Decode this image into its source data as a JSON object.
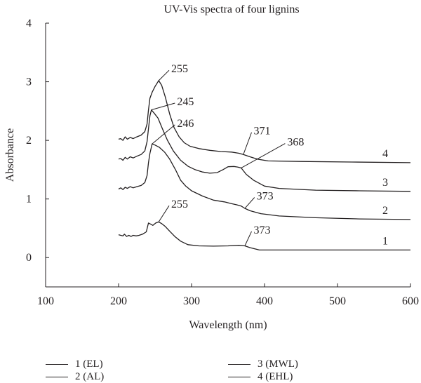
{
  "chart_data": {
    "type": "line",
    "title": "UV-Vis spectra of four lignins",
    "xlabel": "Wavelength (nm)",
    "ylabel": "Absorbance",
    "xlim": [
      100,
      600
    ],
    "ylim": [
      -0.5,
      4
    ],
    "xticks": [
      100,
      200,
      300,
      400,
      500,
      600
    ],
    "yticks": [
      0,
      1,
      2,
      3,
      4
    ],
    "grid": false,
    "legend_position": "bottom",
    "series": [
      {
        "name": "1 (EL)",
        "end_label": "1",
        "points": [
          [
            200,
            0.39
          ],
          [
            203,
            0.38
          ],
          [
            206,
            0.37
          ],
          [
            208,
            0.4
          ],
          [
            211,
            0.36
          ],
          [
            214,
            0.38
          ],
          [
            217,
            0.36
          ],
          [
            220,
            0.38
          ],
          [
            224,
            0.37
          ],
          [
            228,
            0.38
          ],
          [
            233,
            0.4
          ],
          [
            238,
            0.44
          ],
          [
            241,
            0.59
          ],
          [
            244,
            0.57
          ],
          [
            247,
            0.55
          ],
          [
            251,
            0.59
          ],
          [
            255,
            0.61
          ],
          [
            259,
            0.58
          ],
          [
            264,
            0.53
          ],
          [
            270,
            0.45
          ],
          [
            277,
            0.36
          ],
          [
            285,
            0.28
          ],
          [
            295,
            0.22
          ],
          [
            310,
            0.2
          ],
          [
            330,
            0.195
          ],
          [
            350,
            0.2
          ],
          [
            365,
            0.21
          ],
          [
            373,
            0.2
          ],
          [
            380,
            0.17
          ],
          [
            393,
            0.13
          ],
          [
            420,
            0.13
          ],
          [
            500,
            0.13
          ],
          [
            600,
            0.13
          ]
        ]
      },
      {
        "name": "2 (AL)",
        "end_label": "2",
        "points": [
          [
            200,
            1.17
          ],
          [
            203,
            1.19
          ],
          [
            206,
            1.16
          ],
          [
            209,
            1.2
          ],
          [
            212,
            1.18
          ],
          [
            216,
            1.21
          ],
          [
            220,
            1.19
          ],
          [
            225,
            1.21
          ],
          [
            231,
            1.23
          ],
          [
            236,
            1.28
          ],
          [
            239,
            1.4
          ],
          [
            241,
            1.62
          ],
          [
            243,
            1.78
          ],
          [
            246,
            1.94
          ],
          [
            250,
            1.92
          ],
          [
            256,
            1.88
          ],
          [
            263,
            1.8
          ],
          [
            270,
            1.68
          ],
          [
            278,
            1.5
          ],
          [
            285,
            1.32
          ],
          [
            292,
            1.22
          ],
          [
            300,
            1.14
          ],
          [
            315,
            1.05
          ],
          [
            330,
            0.98
          ],
          [
            345,
            0.95
          ],
          [
            355,
            0.92
          ],
          [
            362,
            0.9
          ],
          [
            368,
            0.88
          ],
          [
            373,
            0.84
          ],
          [
            380,
            0.8
          ],
          [
            395,
            0.75
          ],
          [
            420,
            0.71
          ],
          [
            470,
            0.68
          ],
          [
            530,
            0.66
          ],
          [
            600,
            0.65
          ]
        ]
      },
      {
        "name": "3 (MWL)",
        "end_label": "3",
        "points": [
          [
            200,
            1.68
          ],
          [
            203,
            1.69
          ],
          [
            206,
            1.66
          ],
          [
            209,
            1.71
          ],
          [
            212,
            1.68
          ],
          [
            216,
            1.72
          ],
          [
            220,
            1.7
          ],
          [
            225,
            1.73
          ],
          [
            231,
            1.76
          ],
          [
            236,
            1.82
          ],
          [
            239,
            1.98
          ],
          [
            241,
            2.2
          ],
          [
            243,
            2.42
          ],
          [
            245,
            2.52
          ],
          [
            249,
            2.46
          ],
          [
            254,
            2.38
          ],
          [
            260,
            2.2
          ],
          [
            267,
            2.0
          ],
          [
            275,
            1.82
          ],
          [
            285,
            1.66
          ],
          [
            295,
            1.56
          ],
          [
            305,
            1.5
          ],
          [
            315,
            1.46
          ],
          [
            325,
            1.44
          ],
          [
            335,
            1.45
          ],
          [
            343,
            1.5
          ],
          [
            350,
            1.55
          ],
          [
            358,
            1.555
          ],
          [
            363,
            1.545
          ],
          [
            368,
            1.53
          ],
          [
            375,
            1.42
          ],
          [
            385,
            1.32
          ],
          [
            400,
            1.22
          ],
          [
            420,
            1.18
          ],
          [
            470,
            1.15
          ],
          [
            530,
            1.14
          ],
          [
            600,
            1.13
          ]
        ]
      },
      {
        "name": "4 (EHL)",
        "end_label": "4",
        "points": [
          [
            200,
            2.02
          ],
          [
            203,
            2.03
          ],
          [
            206,
            2.0
          ],
          [
            209,
            2.06
          ],
          [
            212,
            2.02
          ],
          [
            216,
            2.05
          ],
          [
            220,
            2.03
          ],
          [
            225,
            2.06
          ],
          [
            231,
            2.09
          ],
          [
            236,
            2.15
          ],
          [
            239,
            2.28
          ],
          [
            241,
            2.52
          ],
          [
            243,
            2.72
          ],
          [
            246,
            2.82
          ],
          [
            250,
            2.92
          ],
          [
            255,
            3.02
          ],
          [
            259,
            2.94
          ],
          [
            264,
            2.74
          ],
          [
            270,
            2.45
          ],
          [
            276,
            2.22
          ],
          [
            283,
            2.06
          ],
          [
            290,
            1.96
          ],
          [
            298,
            1.9
          ],
          [
            310,
            1.86
          ],
          [
            325,
            1.83
          ],
          [
            340,
            1.81
          ],
          [
            355,
            1.8
          ],
          [
            365,
            1.78
          ],
          [
            371,
            1.76
          ],
          [
            380,
            1.72
          ],
          [
            390,
            1.68
          ],
          [
            405,
            1.65
          ],
          [
            450,
            1.64
          ],
          [
            520,
            1.63
          ],
          [
            600,
            1.62
          ]
        ]
      }
    ],
    "annotations": [
      {
        "text": "255",
        "x": 255,
        "y": 3.02,
        "label_x": 275,
        "label_y": 3.22
      },
      {
        "text": "245",
        "x": 245,
        "y": 2.52,
        "label_x": 283,
        "label_y": 2.66
      },
      {
        "text": "246",
        "x": 246,
        "y": 1.94,
        "label_x": 283,
        "label_y": 2.29
      },
      {
        "text": "371",
        "x": 371,
        "y": 1.76,
        "label_x": 388,
        "label_y": 2.16
      },
      {
        "text": "368",
        "x": 368,
        "y": 1.53,
        "label_x": 434,
        "label_y": 1.97
      },
      {
        "text": "373",
        "x": 373,
        "y": 0.84,
        "label_x": 392,
        "label_y": 1.05
      },
      {
        "text": "255",
        "x": 255,
        "y": 0.61,
        "label_x": 275,
        "label_y": 0.91
      },
      {
        "text": "373",
        "x": 373,
        "y": 0.2,
        "label_x": 388,
        "label_y": 0.47
      }
    ]
  }
}
